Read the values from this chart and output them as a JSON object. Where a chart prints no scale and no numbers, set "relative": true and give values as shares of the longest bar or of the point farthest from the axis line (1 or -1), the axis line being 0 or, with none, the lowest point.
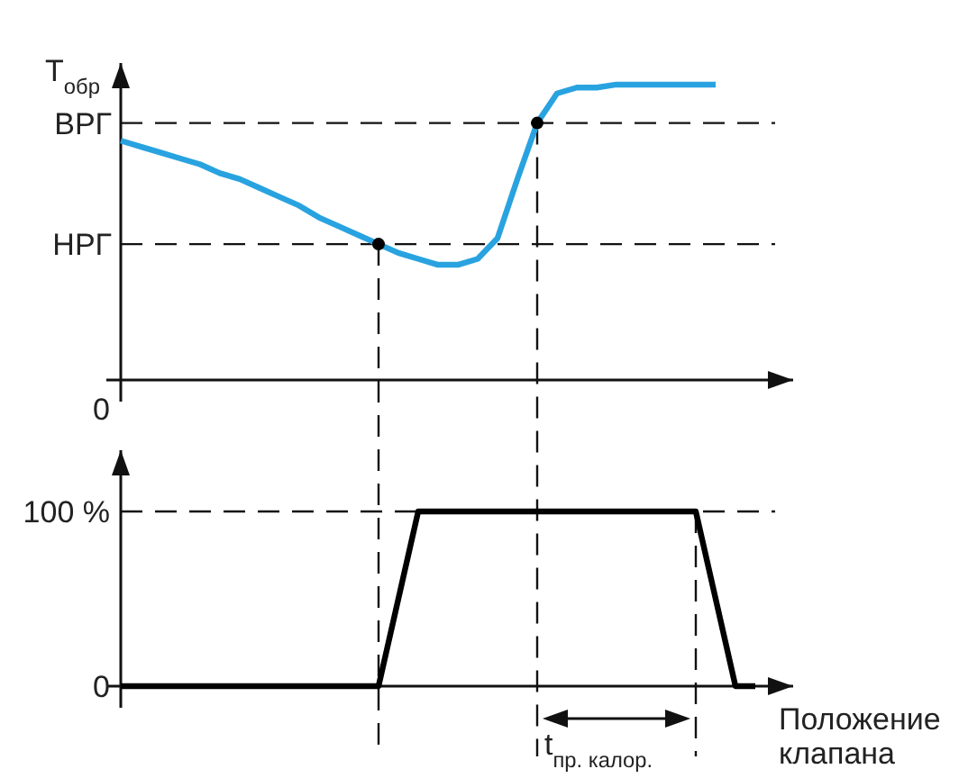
{
  "chart_data": [
    {
      "type": "line",
      "relative": true,
      "ylabel": "T$_{обр}$",
      "tick_labels": "y",
      "grid": false,
      "categories": [
        null,
        null,
        null,
        null,
        null,
        null,
        null,
        null,
        null,
        null,
        null,
        null,
        null,
        null,
        null,
        null,
        null,
        null,
        null,
        null,
        null,
        null,
        null,
        null,
        null,
        null,
        null,
        null,
        null,
        null,
        null,
        null,
        null
      ],
      "series": [
        {
          "color": "#29a3e0",
          "values": [
            0.81,
            0.79,
            0.77,
            0.75,
            0.73,
            0.7,
            0.68,
            0.65,
            0.62,
            0.59,
            0.55,
            0.52,
            0.49,
            0.46,
            0.43,
            0.41,
            0.39,
            0.39,
            0.41,
            0.48,
            0.68,
            0.87,
            0.97,
            0.99,
            0.99,
            1,
            1,
            1,
            1,
            1,
            1,
            null,
            null
          ]
        }
      ],
      "ref_lines": [
        {
          "axis": "y",
          "value": 0.87,
          "label": "ВРГ",
          "line_style": "dashed"
        },
        {
          "axis": "y",
          "value": 0.46,
          "label": "НРГ",
          "line_style": "dashed"
        }
      ],
      "annotations": [
        "0"
      ]
    },
    {
      "type": "line",
      "xlabel": "Положение клапана",
      "ylim": [
        0,
        135
      ],
      "yticks": [
        0,
        {
          "value": 100,
          "label": "100 %"
        }
      ],
      "tick_labels": "y",
      "grid": false,
      "categories": [
        null,
        null,
        null,
        null,
        null,
        null,
        null,
        null,
        null,
        null,
        null,
        null,
        null,
        null,
        null,
        null,
        null,
        null,
        null,
        null,
        null,
        null,
        null,
        null,
        null,
        null,
        null,
        null,
        null,
        null,
        null,
        null,
        null
      ],
      "series": [
        {
          "color": "#000000",
          "values": [
            0,
            0,
            0,
            0,
            0,
            0,
            0,
            0,
            0,
            0,
            0,
            0,
            0,
            0,
            50,
            100,
            100,
            100,
            100,
            100,
            100,
            100,
            100,
            100,
            100,
            100,
            100,
            100,
            100,
            100,
            50,
            0,
            0
          ]
        }
      ],
      "ref_lines": [
        {
          "axis": "y",
          "value": 100,
          "line_style": "dashed"
        }
      ],
      "annotations": [
        "t$_{пр. калор.}$"
      ]
    }
  ]
}
